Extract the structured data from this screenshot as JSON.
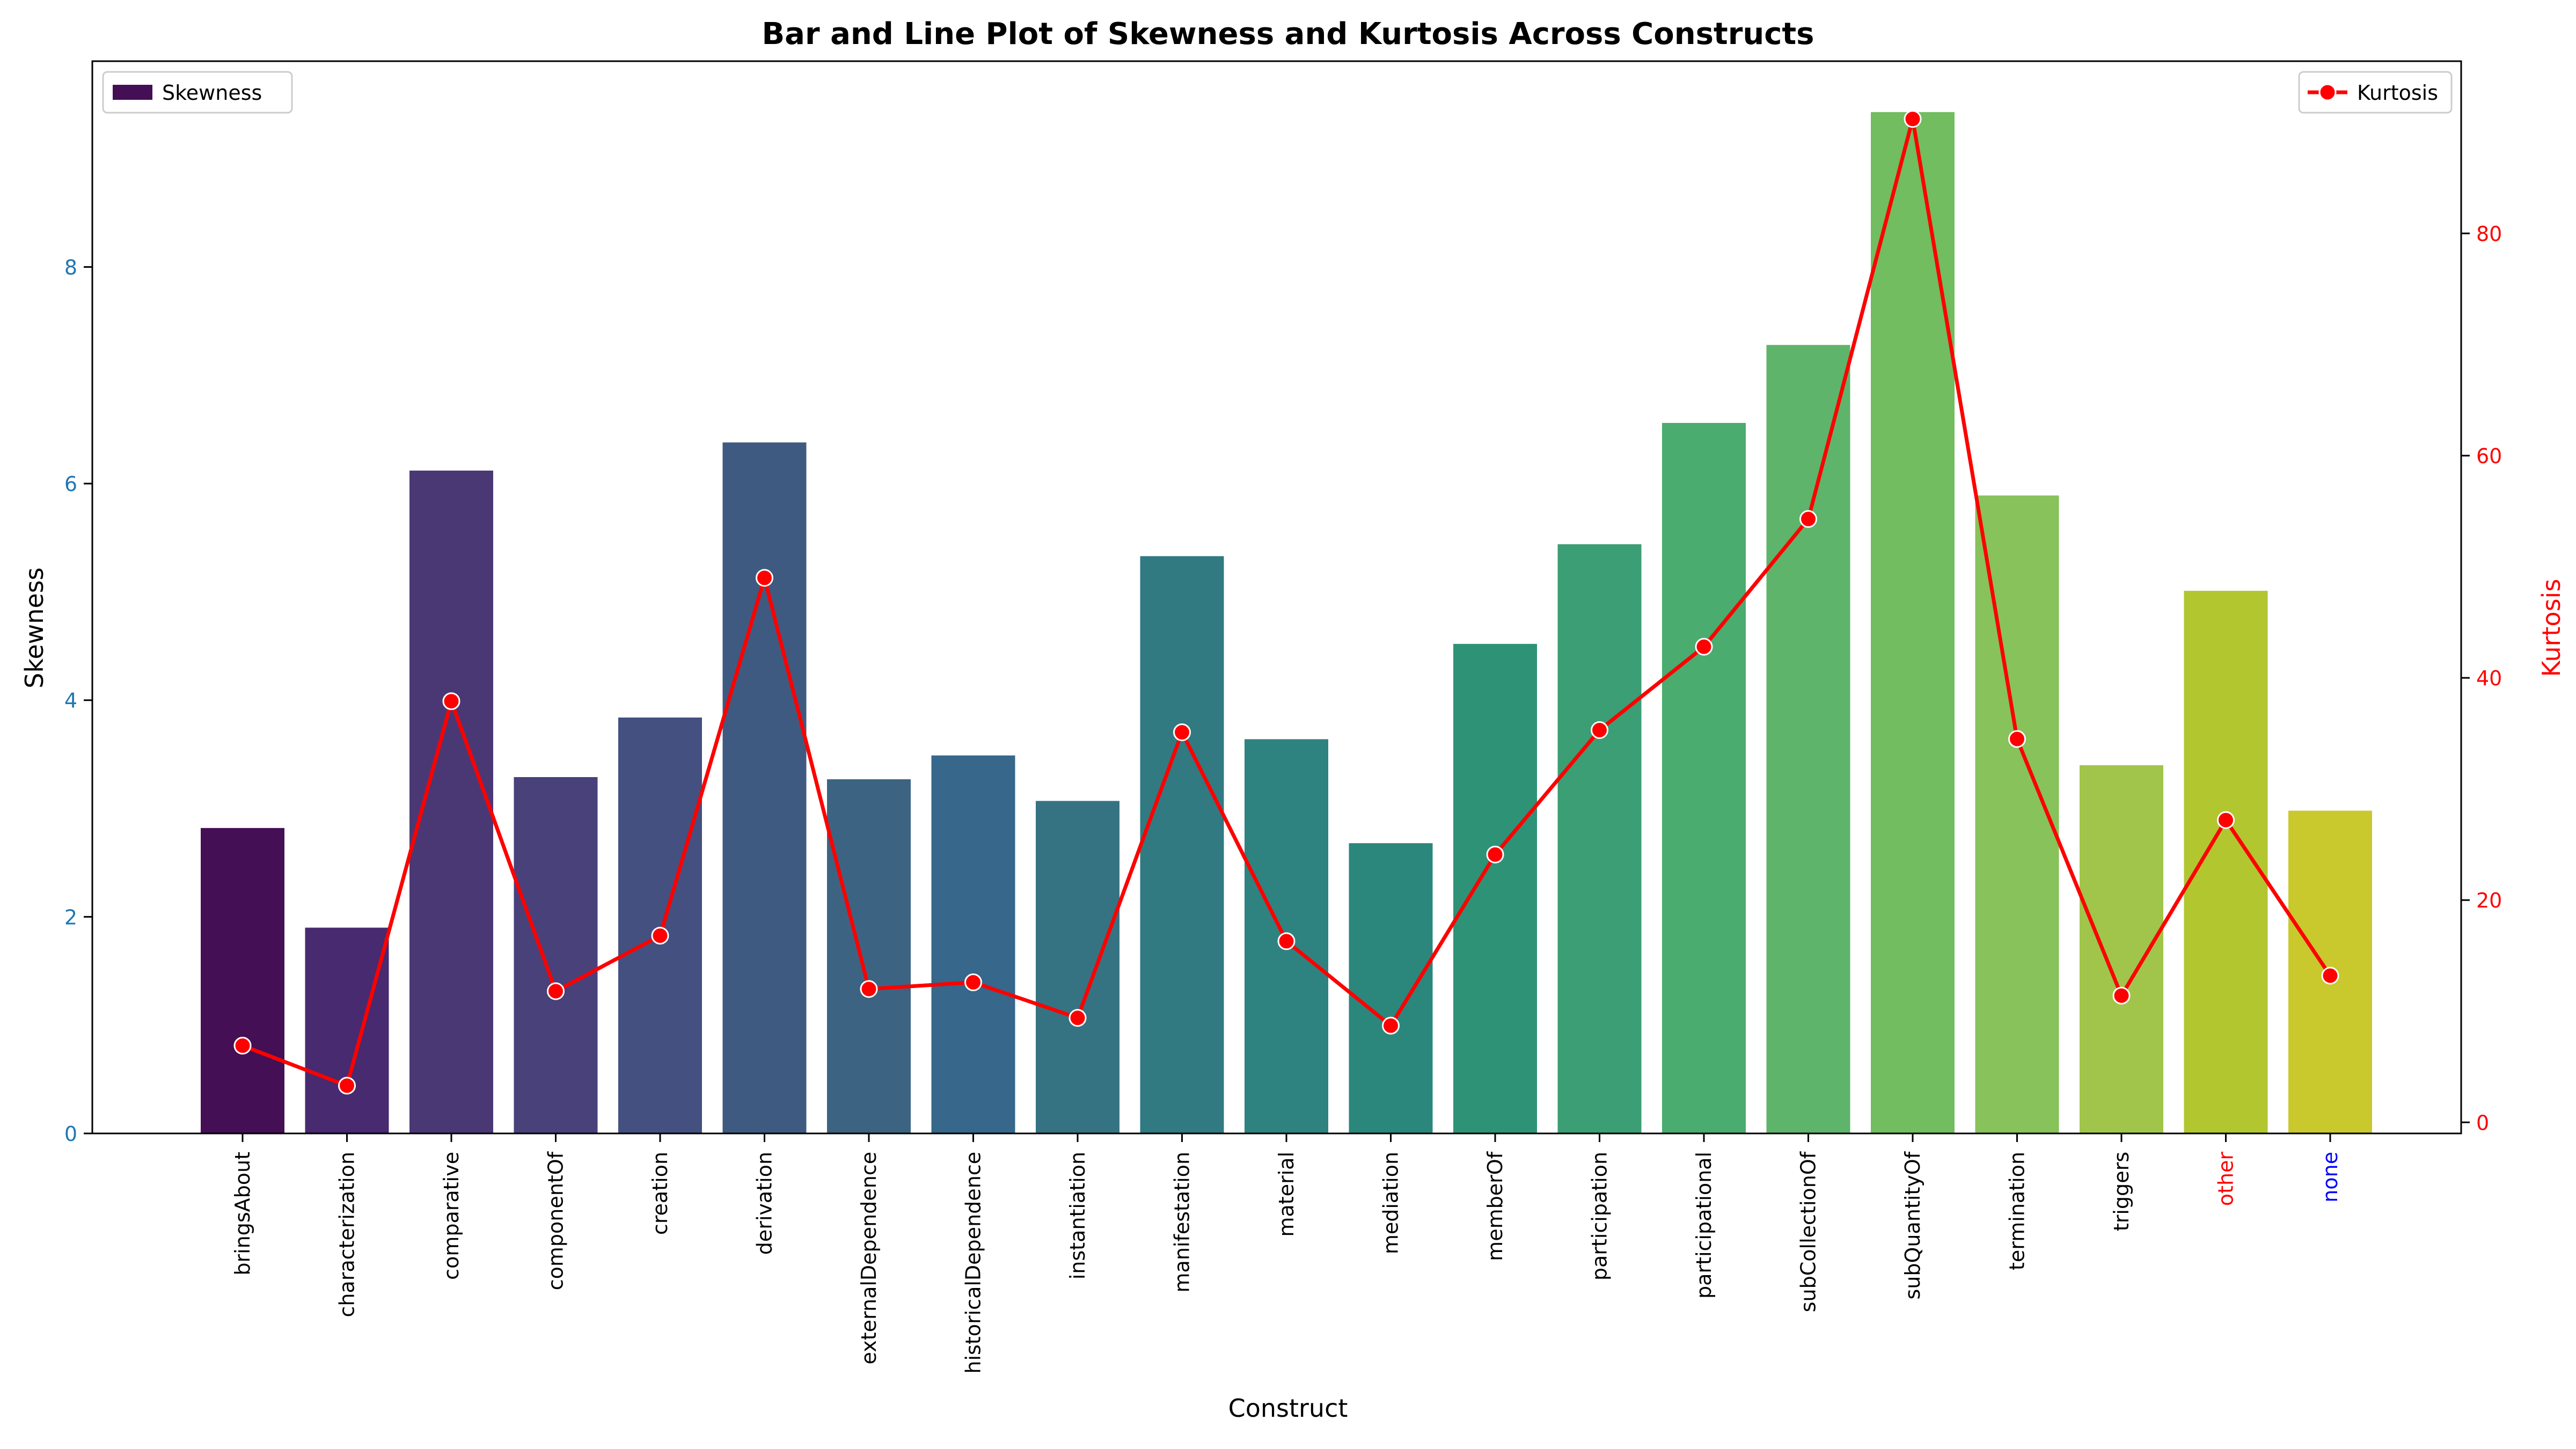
{
  "chart_data": {
    "type": "bar",
    "title": "Bar and Line Plot of Skewness and Kurtosis Across Constructs",
    "xlabel": "Construct",
    "ylabel": "Skewness",
    "y2label": "Kurtosis",
    "categories": [
      "bringsAbout",
      "characterization",
      "comparative",
      "componentOf",
      "creation",
      "derivation",
      "externalDependence",
      "historicalDependence",
      "instantiation",
      "manifestation",
      "material",
      "mediation",
      "memberOf",
      "participation",
      "participational",
      "subCollectionOf",
      "subQuantityOf",
      "termination",
      "triggers",
      "other",
      "none"
    ],
    "category_label_colors": {
      "other": "#ff0000",
      "none": "#0000ff"
    },
    "ylim": [
      0,
      9.9
    ],
    "yticks": [
      0,
      2,
      4,
      6,
      8
    ],
    "y2lim": [
      -1,
      95.5
    ],
    "y2ticks": [
      0,
      20,
      40,
      60,
      80
    ],
    "series": [
      {
        "name": "Skewness",
        "type": "bar",
        "values": [
          2.82,
          1.9,
          6.12,
          3.29,
          3.84,
          6.38,
          3.27,
          3.49,
          3.07,
          5.33,
          3.64,
          2.68,
          4.52,
          5.44,
          6.56,
          7.28,
          9.43,
          5.89,
          3.4,
          5.01,
          2.98
        ],
        "colors": [
          "#440f55",
          "#472a6f",
          "#4a3874",
          "#48417a",
          "#44507f",
          "#3f5a80",
          "#3c6482",
          "#37678a",
          "#357383",
          "#317a82",
          "#2e8380",
          "#2b877c",
          "#2e9277",
          "#3b9e74",
          "#4aac6f",
          "#5fb46b",
          "#71bd60",
          "#88c25b",
          "#a1c54a",
          "#b2c630",
          "#c9c82d"
        ]
      },
      {
        "name": "Kurtosis",
        "type": "line",
        "color": "#ff0000",
        "values": [
          6.9,
          3.3,
          37.9,
          11.8,
          16.8,
          49.0,
          12.0,
          12.6,
          9.4,
          35.1,
          16.3,
          8.7,
          24.1,
          35.3,
          42.8,
          54.3,
          90.3,
          34.5,
          11.4,
          27.2,
          13.2
        ]
      }
    ],
    "legend": {
      "left": "Skewness",
      "right": "Kurtosis",
      "left_placement": "top-left",
      "right_placement": "top-right"
    },
    "grid": false
  }
}
